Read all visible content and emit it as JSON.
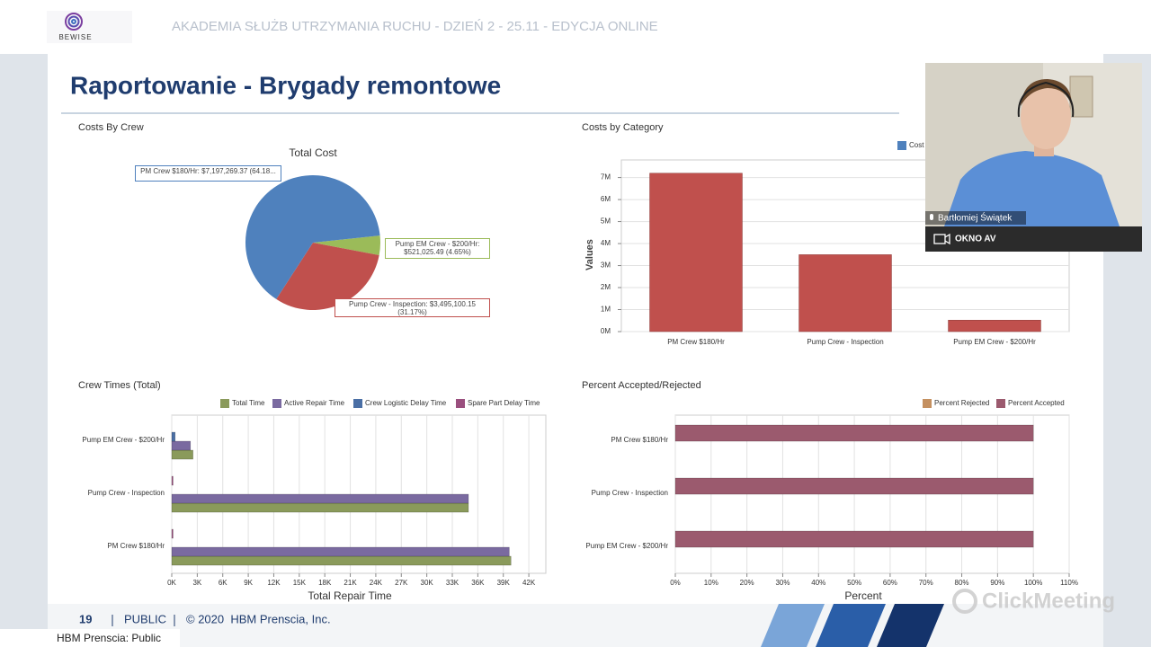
{
  "header": {
    "logo": "BEWISE",
    "title": "AKADEMIA SŁUŻB UTRZYMANIA RUCHU - DZIEŃ 2 - 25.11 - EDYCJA ONLINE"
  },
  "slide": {
    "title": "Raportowanie - Brygady remontowe",
    "charts": [
      {
        "type": "pie",
        "heading": "Costs By Crew",
        "title": "Total Cost",
        "categories": [
          "PM Crew $180/Hr",
          "Pump Crew - Inspection",
          "Pump EM Crew - $200/Hr"
        ],
        "values": [
          64.18,
          31.17,
          4.65
        ],
        "value_labels": [
          "PM Crew $180/Hr: $7,197,269.37 (64.18...",
          "Pump Crew - Inspection: $3,495,100.15 (31.17%)",
          "Pump EM Crew - $200/Hr: $521,025.49 (4.65%)"
        ],
        "colors": [
          "#4f81bd",
          "#c0504d",
          "#9bbb59"
        ]
      },
      {
        "type": "bar",
        "heading": "Costs by Category",
        "ylabel": "Values",
        "categories": [
          "PM Crew $180/Hr",
          "Pump Crew - Inspection",
          "Pump EM Crew - $200/Hr"
        ],
        "series": [
          {
            "name": "Cost",
            "color": "#c0504d",
            "legend_color": "#4f81bd",
            "values": [
              7197269.37,
              3495100.15,
              521025.49
            ]
          }
        ],
        "ylim": [
          0,
          7800000
        ],
        "yticks": [
          {
            "value": 0,
            "label": "0M"
          },
          {
            "value": 1000000,
            "label": "1M"
          },
          {
            "value": 2000000,
            "label": "2M"
          },
          {
            "value": 3000000,
            "label": "3M"
          },
          {
            "value": 4000000,
            "label": "4M"
          },
          {
            "value": 5000000,
            "label": "5M"
          },
          {
            "value": 6000000,
            "label": "6M"
          },
          {
            "value": 7000000,
            "label": "7M"
          }
        ],
        "grid": true
      },
      {
        "type": "barh",
        "heading": "Crew Times (Total)",
        "xlabel": "Total Repair Time",
        "categories": [
          "PM Crew $180/Hr",
          "Pump Crew - Inspection",
          "Pump EM Crew - $200/Hr"
        ],
        "series": [
          {
            "name": "Total Time",
            "color": "#8a9a5b",
            "values": [
              39900,
              34900,
              2500
            ]
          },
          {
            "name": "Active Repair Time",
            "color": "#7a6aa0",
            "values": [
              39700,
              34900,
              2200
            ]
          },
          {
            "name": "Crew Logistic Delay Time",
            "color": "#4a6fa5",
            "values": [
              0,
              0,
              400
            ]
          },
          {
            "name": "Spare Part Delay Time",
            "color": "#9a4f7e",
            "values": [
              150,
              150,
              0
            ]
          }
        ],
        "xlim": [
          0,
          44000
        ],
        "xticks": [
          {
            "value": 0,
            "label": "0K"
          },
          {
            "value": 3000,
            "label": "3K"
          },
          {
            "value": 6000,
            "label": "6K"
          },
          {
            "value": 9000,
            "label": "9K"
          },
          {
            "value": 12000,
            "label": "12K"
          },
          {
            "value": 15000,
            "label": "15K"
          },
          {
            "value": 18000,
            "label": "18K"
          },
          {
            "value": 21000,
            "label": "21K"
          },
          {
            "value": 24000,
            "label": "24K"
          },
          {
            "value": 27000,
            "label": "27K"
          },
          {
            "value": 30000,
            "label": "30K"
          },
          {
            "value": 33000,
            "label": "33K"
          },
          {
            "value": 36000,
            "label": "36K"
          },
          {
            "value": 39000,
            "label": "39K"
          },
          {
            "value": 42000,
            "label": "42K"
          }
        ],
        "grid": true
      },
      {
        "type": "barh",
        "heading": "Percent Accepted/Rejected",
        "xlabel": "Percent",
        "categories": [
          "PM Crew $180/Hr",
          "Pump Crew - Inspection",
          "Pump EM Crew - $200/Hr"
        ],
        "series": [
          {
            "name": "Percent Rejected",
            "color": "#c49060",
            "values": [
              0,
              0,
              0
            ]
          },
          {
            "name": "Percent Accepted",
            "color": "#9b5a6e",
            "values": [
              100,
              100,
              100
            ]
          }
        ],
        "xlim": [
          0,
          110
        ],
        "xticks": [
          {
            "value": 0,
            "label": "0%"
          },
          {
            "value": 10,
            "label": "10%"
          },
          {
            "value": 20,
            "label": "20%"
          },
          {
            "value": 30,
            "label": "30%"
          },
          {
            "value": 40,
            "label": "40%"
          },
          {
            "value": 50,
            "label": "50%"
          },
          {
            "value": 60,
            "label": "60%"
          },
          {
            "value": 70,
            "label": "70%"
          },
          {
            "value": 80,
            "label": "80%"
          },
          {
            "value": 90,
            "label": "90%"
          },
          {
            "value": 100,
            "label": "100%"
          },
          {
            "value": 110,
            "label": "110%"
          }
        ],
        "grid": true
      }
    ]
  },
  "video": {
    "name": "Bartłomiej Świątek",
    "button": "OKNO AV"
  },
  "footer": {
    "page_number": "19",
    "classification": "PUBLIC",
    "copyright": "© 2020  HBM Prenscia, Inc.",
    "note": "HBM Prenscia: Public",
    "watermark": "ClickMeeting"
  }
}
